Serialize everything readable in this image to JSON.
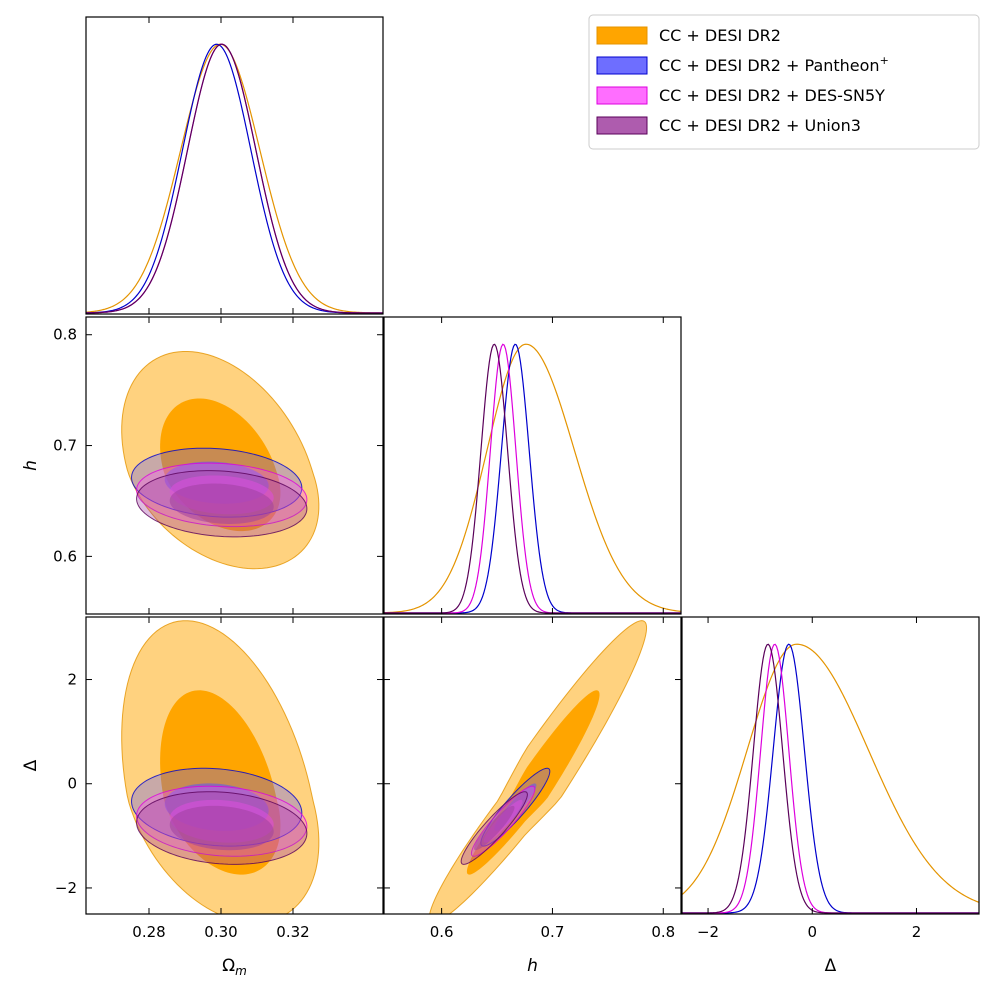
{
  "chart_data": {
    "type": "corner",
    "title": "",
    "parameters": [
      {
        "key": "om",
        "label": "Ω",
        "subscript": "m",
        "range": [
          0.2625,
          0.345
        ],
        "ticks": [
          0.28,
          0.3,
          0.32
        ],
        "tick_labels": [
          "0.28",
          "0.30",
          "0.32"
        ]
      },
      {
        "key": "h",
        "label": "h",
        "subscript": "",
        "range": [
          0.548,
          0.816
        ],
        "ticks": [
          0.6,
          0.7,
          0.8
        ],
        "tick_labels": [
          "0.6",
          "0.7",
          "0.8"
        ]
      },
      {
        "key": "delta",
        "label": "Δ",
        "subscript": "",
        "range": [
          -2.5,
          3.2
        ],
        "ticks": [
          -2,
          0,
          2
        ],
        "tick_labels": [
          "−2",
          "0",
          "2"
        ]
      }
    ],
    "series": [
      {
        "name": "CC + DESI DR2",
        "color": "#FFA500",
        "stroke": "#E49400",
        "inner_opacity": 1.0,
        "outer_opacity": 0.5,
        "mean": {
          "om": 0.2998,
          "h": 0.676,
          "delta": -0.3
        },
        "sigma": {
          "om": 0.011,
          "h": 0.035,
          "delta": 0.95
        },
        "corr": {
          "om_h": -0.35,
          "om_delta": -0.35,
          "h_delta": 0.96
        },
        "skew": {
          "h_right": 1.25,
          "delta_right": 1.45
        }
      },
      {
        "name": "CC + DESI DR2 + Pantheon",
        "name_sup": "+",
        "color": "#5555FF",
        "stroke": "#0000CC",
        "inner_opacity": 0.55,
        "outer_opacity": 0.32,
        "mean": {
          "om": 0.2988,
          "h": 0.6665,
          "delta": -0.45
        },
        "sigma": {
          "om": 0.0095,
          "h": 0.0125,
          "delta": 0.3
        },
        "corr": {
          "om_h": -0.15,
          "om_delta": -0.15,
          "h_delta": 0.92
        }
      },
      {
        "name": "CC + DESI DR2 + DES-SN5Y",
        "color": "#FF55FF",
        "stroke": "#DD00DD",
        "inner_opacity": 0.55,
        "outer_opacity": 0.32,
        "mean": {
          "om": 0.3002,
          "h": 0.6555,
          "delta": -0.72
        },
        "sigma": {
          "om": 0.0095,
          "h": 0.0115,
          "delta": 0.27
        },
        "corr": {
          "om_h": -0.15,
          "om_delta": -0.15,
          "h_delta": 0.92
        }
      },
      {
        "name": "CC + DESI DR2 + Union3",
        "color": "#A040A0",
        "stroke": "#5A005A",
        "inner_opacity": 0.55,
        "outer_opacity": 0.35,
        "mean": {
          "om": 0.3002,
          "h": 0.6475,
          "delta": -0.85
        },
        "sigma": {
          "om": 0.0095,
          "h": 0.012,
          "delta": 0.28
        },
        "corr": {
          "om_h": -0.15,
          "om_delta": -0.15,
          "h_delta": 0.92
        }
      }
    ],
    "legend_position": "top-right",
    "grid": false
  }
}
